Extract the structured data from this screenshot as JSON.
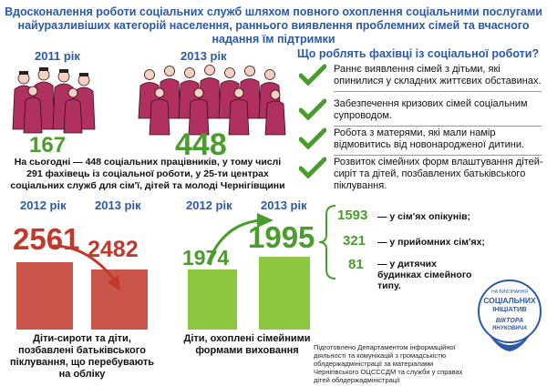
{
  "title": "Вдосконалення роботи соціальних служб шляхом повного охоплення соціальними послугами найуразливіших категорій населення, раннього виявлення проблемних сімей та вчасного надання їм підтримки",
  "staff": {
    "year_a": "2011 рік",
    "year_b": "2013 рік",
    "count_a": "167",
    "count_b": "448",
    "note": "На сьогодні — 448 соціальних працівників, у тому числі 291 фахівець із соціальної роботи, у 25-ти центрах соціальних служб для сім'ї, дітей та молоді Чернігівщини"
  },
  "question": "Що роблять фахівці із соціальної роботи?",
  "tasks": [
    "Раннє виявлення сімей з дітьми, які опинилися у складних життєвих обставинах.",
    "Забезпечення кризових сімей соціальним супроводом.",
    "Робота з матерями, які мали намір відмовитись від новонародженої дитини.",
    "Розвиток сімейних форм влаштування дітей-сиріт та дітей, позбавлених батьківського піклування."
  ],
  "orphans": {
    "year_a": "2012 рік",
    "year_b": "2013 рік",
    "value_a": "2561",
    "value_b": "2482",
    "caption": "Діти-сироти та діти, позбавлені батьківського піклування, що перебувають на обліку",
    "color": "#c0392b"
  },
  "family": {
    "year_a": "2012 рік",
    "year_b": "2013 рік",
    "value_a": "1974",
    "value_b": "1995",
    "caption": "Діти, охоплені сімейними формами виховання",
    "color": "#8dc63f"
  },
  "breakdown": [
    {
      "value": "1593",
      "label": "— у сім'ях опікунів;"
    },
    {
      "value": "321",
      "label": "— у прийомних сім'ях;"
    },
    {
      "value": "81",
      "label": "— у дитячих будинках сімейного типу."
    }
  ],
  "source": "Підготовлено Департаментом інформаційної діяльності та комунікацій з громадськістю облдержадміністрації за матеріалами Чернігівського ОЦСССДМ та служби у справах дітей облдержадміністрації",
  "logo": {
    "line1": "НА ВИКОНАННЯ",
    "line2": "СОЦІАЛЬНИХ",
    "line3": "ІНІЦІАТИВ",
    "line4": "ВІКТОРА",
    "line5": "ЯНУКОВИЧА"
  }
}
